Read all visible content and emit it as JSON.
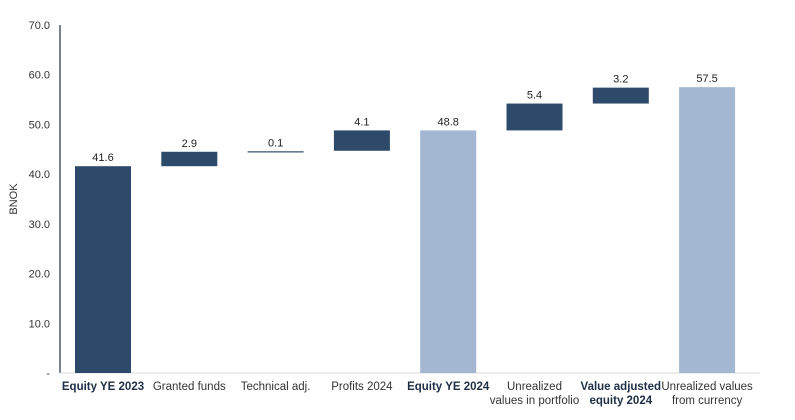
{
  "chart_data": {
    "type": "bar",
    "subtype": "waterfall",
    "ylabel": "BNOK",
    "ylim": [
      0,
      70
    ],
    "yticks": [
      "-",
      "10.0",
      "20.0",
      "30.0",
      "40.0",
      "50.0",
      "60.0",
      "70.0"
    ],
    "grid": false,
    "legend": "none",
    "categories": [
      {
        "lines": [
          "Equity YE 2023"
        ],
        "bold": true
      },
      {
        "lines": [
          "Granted funds"
        ],
        "bold": false
      },
      {
        "lines": [
          "Technical adj."
        ],
        "bold": false
      },
      {
        "lines": [
          "Profits 2024"
        ],
        "bold": false
      },
      {
        "lines": [
          "Equity YE 2024"
        ],
        "bold": true
      },
      {
        "lines": [
          "Unrealized",
          "values in portfolio"
        ],
        "bold": false
      },
      {
        "lines": [
          "Value adjusted",
          "equity 2024"
        ],
        "bold": true
      },
      {
        "lines": [
          "Unrealized values",
          "from currency"
        ],
        "bold": false
      }
    ],
    "bars": [
      {
        "kind": "total",
        "base": 0,
        "value": 41.6,
        "label": "41.6",
        "color": "#2e4a6b"
      },
      {
        "kind": "delta",
        "base": 41.6,
        "value": 2.9,
        "label": "2.9",
        "color": "#2e4a6b"
      },
      {
        "kind": "delta",
        "base": 44.5,
        "value": 0.1,
        "label": "0.1",
        "color": "#2e4a6b"
      },
      {
        "kind": "delta",
        "base": 44.7,
        "value": 4.1,
        "label": "4.1",
        "color": "#2e4a6b"
      },
      {
        "kind": "total",
        "base": 0,
        "value": 48.8,
        "label": "48.8",
        "color": "#a3b7d2"
      },
      {
        "kind": "delta",
        "base": 48.8,
        "value": 5.4,
        "label": "5.4",
        "color": "#2e4a6b"
      },
      {
        "kind": "delta",
        "base": 54.2,
        "value": 3.2,
        "label": "3.2",
        "color": "#2e4a6b"
      },
      {
        "kind": "total",
        "base": 0,
        "value": 57.5,
        "label": "57.5",
        "color": "#a3b7d2"
      }
    ],
    "colors": {
      "dark": "#2e4a6b",
      "light": "#a3b7d2",
      "axis": "#1f2f46"
    }
  }
}
